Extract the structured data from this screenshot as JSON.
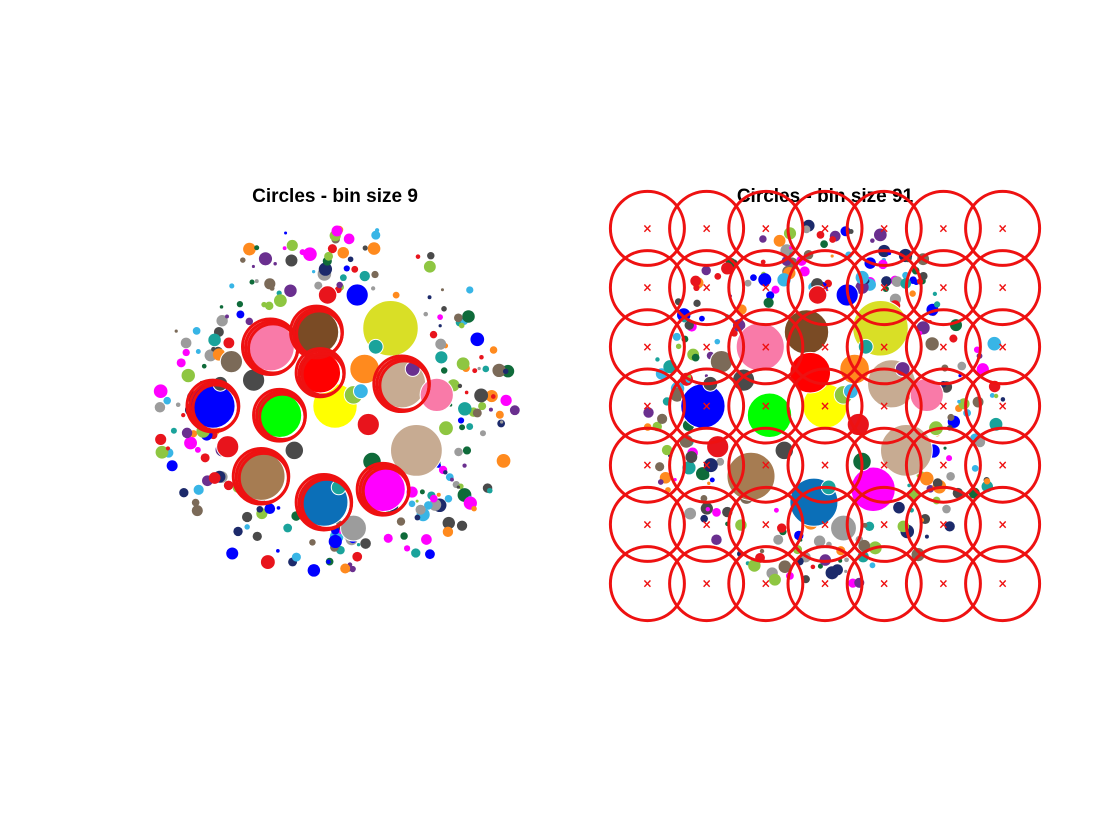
{
  "colors": {
    "red": "#e8141c",
    "pureRed": "#ff0000",
    "blue": "#0000ff",
    "green": "#00ff00",
    "yellow": "#ffff00",
    "olive": "#d9df26",
    "pink": "#f97aa8",
    "brown": "#7a4b25",
    "tan": "#c7ab92",
    "lightbrown": "#a67c52",
    "steel": "#0b6fb8",
    "magenta": "#ff00ff",
    "orange": "#ff8a1e",
    "grey": "#9c9c9c",
    "darkgrey": "#4a4a4a",
    "darkgreen": "#0f6b3a",
    "lime": "#8ec641",
    "teal": "#1aa39b",
    "purple": "#6a2f8f",
    "cyan": "#38b5e6",
    "taupe": "#7b6a58",
    "navy": "#1c2a6b",
    "ring": "#ee1111"
  },
  "chart_data": [
    {
      "type": "scatter",
      "title": "Circles - bin size 9",
      "bin_size": 9,
      "series": [
        {
          "name": "circles",
          "values": [
            {
              "x": 0.0,
              "y": 0.0,
              "r": 0.12,
              "c": "yellow"
            },
            {
              "x": 0.3,
              "y": -0.42,
              "r": 0.15,
              "c": "olive"
            },
            {
              "x": -0.35,
              "y": -0.32,
              "r": 0.13,
              "c": "pink"
            },
            {
              "x": -0.1,
              "y": -0.4,
              "r": 0.12,
              "c": "brown"
            },
            {
              "x": -0.08,
              "y": -0.18,
              "r": 0.11,
              "c": "pureRed"
            },
            {
              "x": 0.36,
              "y": -0.12,
              "r": 0.13,
              "c": "tan"
            },
            {
              "x": 0.55,
              "y": -0.06,
              "r": 0.09,
              "c": "pink"
            },
            {
              "x": -0.66,
              "y": 0.0,
              "r": 0.12,
              "c": "blue"
            },
            {
              "x": -0.3,
              "y": 0.05,
              "r": 0.12,
              "c": "green"
            },
            {
              "x": 0.44,
              "y": 0.24,
              "r": 0.14,
              "c": "tan"
            },
            {
              "x": -0.4,
              "y": 0.38,
              "r": 0.13,
              "c": "lightbrown"
            },
            {
              "x": -0.06,
              "y": 0.52,
              "r": 0.13,
              "c": "steel"
            },
            {
              "x": 0.26,
              "y": 0.45,
              "r": 0.12,
              "c": "magenta"
            },
            {
              "x": 0.16,
              "y": -0.2,
              "r": 0.08,
              "c": "orange"
            },
            {
              "x": 0.1,
              "y": 0.66,
              "r": 0.07,
              "c": "grey"
            },
            {
              "x": 0.12,
              "y": -0.6,
              "r": 0.06,
              "c": "blue"
            },
            {
              "x": -0.58,
              "y": 0.22,
              "r": 0.06,
              "c": "red"
            },
            {
              "x": 0.18,
              "y": 0.1,
              "r": 0.06,
              "c": "red"
            },
            {
              "x": -0.04,
              "y": -0.6,
              "r": 0.05,
              "c": "red"
            },
            {
              "x": -0.44,
              "y": -0.14,
              "r": 0.06,
              "c": "darkgrey"
            },
            {
              "x": -0.56,
              "y": -0.24,
              "r": 0.06,
              "c": "taupe"
            },
            {
              "x": 0.1,
              "y": -0.06,
              "r": 0.05,
              "c": "lime"
            },
            {
              "x": 0.2,
              "y": 0.3,
              "r": 0.05,
              "c": "darkgreen"
            },
            {
              "x": 0.02,
              "y": 0.44,
              "r": 0.04,
              "c": "teal"
            },
            {
              "x": 0.22,
              "y": -0.32,
              "r": 0.04,
              "c": "teal"
            },
            {
              "x": 0.14,
              "y": -0.08,
              "r": 0.04,
              "c": "cyan"
            },
            {
              "x": 0.42,
              "y": -0.2,
              "r": 0.04,
              "c": "purple"
            },
            {
              "x": -0.22,
              "y": 0.24,
              "r": 0.05,
              "c": "darkgrey"
            },
            {
              "x": -0.62,
              "y": -0.12,
              "r": 0.04,
              "c": "darkgrey"
            },
            {
              "x": 0.6,
              "y": 0.12,
              "r": 0.04,
              "c": "lime"
            }
          ]
        },
        {
          "name": "bins",
          "values": [
            {
              "x": -0.35,
              "y": -0.32,
              "r": 0.15
            },
            {
              "x": -0.1,
              "y": -0.4,
              "r": 0.14
            },
            {
              "x": -0.08,
              "y": -0.18,
              "r": 0.13
            },
            {
              "x": 0.36,
              "y": -0.12,
              "r": 0.15
            },
            {
              "x": -0.66,
              "y": 0.0,
              "r": 0.14
            },
            {
              "x": -0.3,
              "y": 0.05,
              "r": 0.14
            },
            {
              "x": -0.4,
              "y": 0.38,
              "r": 0.15
            },
            {
              "x": -0.06,
              "y": 0.52,
              "r": 0.15
            },
            {
              "x": 0.26,
              "y": 0.45,
              "r": 0.14
            }
          ]
        }
      ],
      "xlim": [
        -1,
        1
      ],
      "ylim": [
        -1,
        1
      ],
      "grid": false
    },
    {
      "type": "scatter",
      "title": "Circles - bin size 91",
      "bin_size": 91,
      "series": [
        {
          "name": "circles",
          "values": [
            {
              "x": 0.0,
              "y": 0.0,
              "r": 0.12,
              "c": "yellow"
            },
            {
              "x": 0.3,
              "y": -0.42,
              "r": 0.15,
              "c": "olive"
            },
            {
              "x": -0.35,
              "y": -0.32,
              "r": 0.13,
              "c": "pink"
            },
            {
              "x": -0.1,
              "y": -0.4,
              "r": 0.12,
              "c": "brown"
            },
            {
              "x": -0.08,
              "y": -0.18,
              "r": 0.11,
              "c": "pureRed"
            },
            {
              "x": 0.36,
              "y": -0.12,
              "r": 0.13,
              "c": "tan"
            },
            {
              "x": 0.55,
              "y": -0.06,
              "r": 0.09,
              "c": "pink"
            },
            {
              "x": -0.66,
              "y": 0.0,
              "r": 0.12,
              "c": "blue"
            },
            {
              "x": -0.3,
              "y": 0.05,
              "r": 0.12,
              "c": "green"
            },
            {
              "x": 0.44,
              "y": 0.24,
              "r": 0.14,
              "c": "tan"
            },
            {
              "x": -0.4,
              "y": 0.38,
              "r": 0.13,
              "c": "lightbrown"
            },
            {
              "x": -0.06,
              "y": 0.52,
              "r": 0.13,
              "c": "steel"
            },
            {
              "x": 0.26,
              "y": 0.45,
              "r": 0.12,
              "c": "magenta"
            },
            {
              "x": 0.16,
              "y": -0.2,
              "r": 0.08,
              "c": "orange"
            },
            {
              "x": 0.1,
              "y": 0.66,
              "r": 0.07,
              "c": "grey"
            },
            {
              "x": 0.12,
              "y": -0.6,
              "r": 0.06,
              "c": "blue"
            },
            {
              "x": -0.58,
              "y": 0.22,
              "r": 0.06,
              "c": "red"
            },
            {
              "x": 0.18,
              "y": 0.1,
              "r": 0.06,
              "c": "red"
            },
            {
              "x": -0.04,
              "y": -0.6,
              "r": 0.05,
              "c": "red"
            },
            {
              "x": -0.44,
              "y": -0.14,
              "r": 0.06,
              "c": "darkgrey"
            },
            {
              "x": -0.56,
              "y": -0.24,
              "r": 0.06,
              "c": "taupe"
            },
            {
              "x": 0.1,
              "y": -0.06,
              "r": 0.05,
              "c": "lime"
            },
            {
              "x": 0.2,
              "y": 0.3,
              "r": 0.05,
              "c": "darkgreen"
            },
            {
              "x": 0.02,
              "y": 0.44,
              "r": 0.04,
              "c": "teal"
            },
            {
              "x": 0.22,
              "y": -0.32,
              "r": 0.04,
              "c": "teal"
            },
            {
              "x": 0.14,
              "y": -0.08,
              "r": 0.04,
              "c": "cyan"
            },
            {
              "x": 0.42,
              "y": -0.2,
              "r": 0.04,
              "c": "purple"
            },
            {
              "x": -0.22,
              "y": 0.24,
              "r": 0.05,
              "c": "darkgrey"
            },
            {
              "x": -0.62,
              "y": -0.12,
              "r": 0.04,
              "c": "darkgrey"
            },
            {
              "x": 0.6,
              "y": 0.12,
              "r": 0.04,
              "c": "lime"
            }
          ]
        },
        {
          "name": "bins",
          "grid": {
            "cols": 7,
            "rows": 7,
            "xstart": -0.96,
            "ystart": -0.96,
            "step": 0.32,
            "r": 0.2
          }
        }
      ],
      "xlim": [
        -1,
        1
      ],
      "ylim": [
        -1,
        1
      ],
      "grid": false
    }
  ]
}
